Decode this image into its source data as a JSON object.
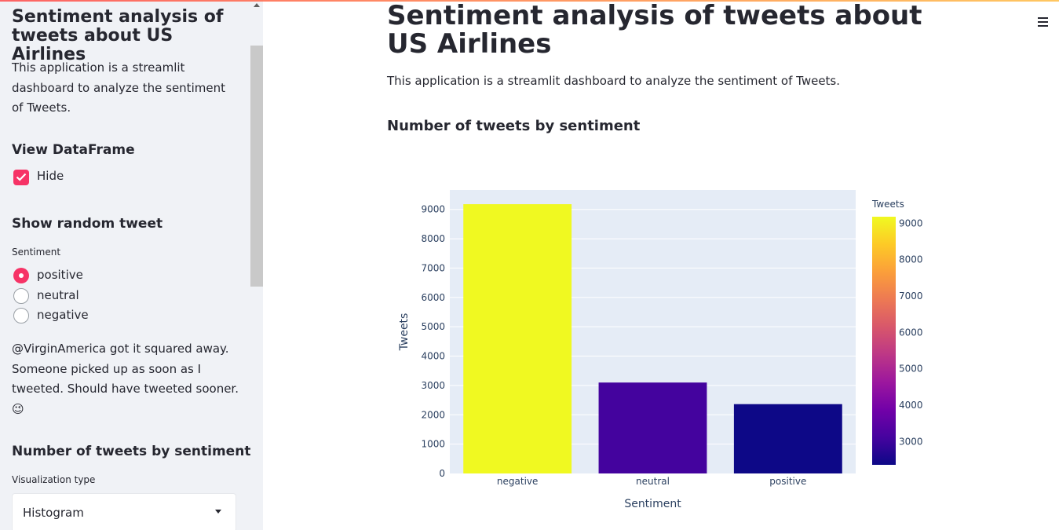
{
  "sidebar": {
    "title": "Sentiment analysis of tweets about US Airlines",
    "description": "This application is a streamlit dashboard to analyze the sentiment of Tweets.",
    "view_dataframe": {
      "heading": "View DataFrame",
      "checkbox_label": "Hide",
      "checked": true
    },
    "random_tweet": {
      "heading": "Show random tweet",
      "radio_label": "Sentiment",
      "options": [
        "positive",
        "neutral",
        "negative"
      ],
      "selected": "positive",
      "tweet_text": "@VirginAmerica got it squared away. Someone picked up as soon as I tweeted. Should have tweeted sooner. 😉"
    },
    "tweets_by_sentiment": {
      "heading": "Number of tweets by sentiment",
      "select_label": "Visualization type",
      "select_value": "Histogram"
    }
  },
  "main": {
    "title": "Sentiment analysis of tweets about US Airlines",
    "description": "This application is a streamlit dashboard to analyze the sentiment of Tweets.",
    "section_heading": "Number of tweets by sentiment"
  },
  "icons": {
    "menu": "hamburger-menu-icon",
    "scroll_up": "scroll-up-arrow-icon"
  },
  "chart_data": {
    "type": "bar",
    "categories": [
      "negative",
      "neutral",
      "positive"
    ],
    "values": [
      9178,
      3099,
      2363
    ],
    "xlabel": "Sentiment",
    "ylabel": "Tweets",
    "ylim": [
      0,
      9661
    ],
    "yticks": [
      0,
      1000,
      2000,
      3000,
      4000,
      5000,
      6000,
      7000,
      8000,
      9000
    ],
    "colorbar": {
      "title": "Tweets",
      "range": [
        2363,
        9178
      ],
      "ticks": [
        3000,
        4000,
        5000,
        6000,
        7000,
        8000,
        9000
      ]
    },
    "colorscale": [
      "#0d0887",
      "#46039f",
      "#7201a8",
      "#9c179e",
      "#bd3786",
      "#d8576b",
      "#ed7953",
      "#fb9f3a",
      "#fdca26",
      "#f0f921"
    ],
    "plot_bg": "#e5ecf6",
    "grid": true
  }
}
